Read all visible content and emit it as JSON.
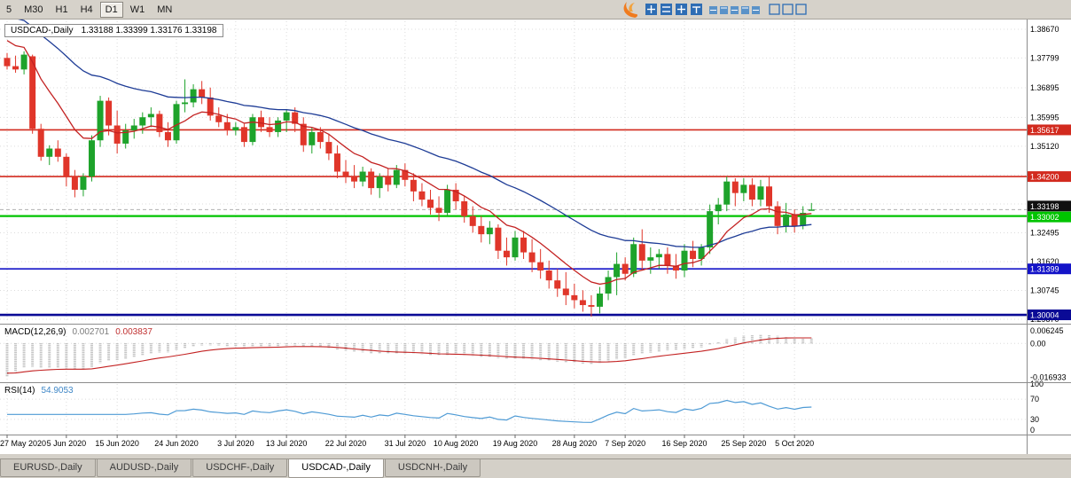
{
  "toolbar": {
    "timeframes": [
      {
        "label": "5",
        "active": false
      },
      {
        "label": "M30",
        "active": false
      },
      {
        "label": "H1",
        "active": false
      },
      {
        "label": "H4",
        "active": false
      },
      {
        "label": "D1",
        "active": true
      },
      {
        "label": "W1",
        "active": false
      },
      {
        "label": "MN",
        "active": false
      }
    ]
  },
  "logo": {
    "primary": "#f07b1e",
    "secondary": "#2e6db4"
  },
  "chart_data": {
    "type": "candlestick",
    "title_symbol": "USDCAD-,Daily",
    "title_ohlc": "1.33188 1.33399 1.33176 1.33198",
    "y_ticks": [
      1.3867,
      1.37799,
      1.36895,
      1.35995,
      1.3512,
      1.34245,
      1.3337,
      1.32495,
      1.3162,
      1.30745,
      1.2987
    ],
    "levels": [
      {
        "price": 1.35617,
        "label": "1.35617",
        "color": "#d22a1e",
        "width": 1.6,
        "badge_offset": 0
      },
      {
        "price": 1.342,
        "label": "1.34200",
        "color": "#d22a1e",
        "width": 1.6,
        "badge_offset": 0
      },
      {
        "price": 1.33002,
        "label": "1.33002",
        "color": "#00c400",
        "width": 2.2,
        "badge_offset": 1
      },
      {
        "price": 1.31399,
        "label": "1.31399",
        "color": "#1414c8",
        "width": 1.6,
        "badge_offset": 0
      },
      {
        "price": 1.30004,
        "label": "1.30004",
        "color": "#0a0a96",
        "width": 2.6,
        "badge_offset": 0
      }
    ],
    "bid": {
      "price": 1.33198,
      "label": "1.33198",
      "color": "#101010",
      "badge_offset": -4
    },
    "x_labels": [
      {
        "index": 0,
        "label": "27 May 2020"
      },
      {
        "index": 7,
        "label": "5 Jun 2020"
      },
      {
        "index": 13,
        "label": "15 Jun 2020"
      },
      {
        "index": 20,
        "label": "24 Jun 2020"
      },
      {
        "index": 27,
        "label": "3 Jul 2020"
      },
      {
        "index": 33,
        "label": "13 Jul 2020"
      },
      {
        "index": 40,
        "label": "22 Jul 2020"
      },
      {
        "index": 47,
        "label": "31 Jul 2020"
      },
      {
        "index": 53,
        "label": "10 Aug 2020"
      },
      {
        "index": 60,
        "label": "19 Aug 2020"
      },
      {
        "index": 67,
        "label": "28 Aug 2020"
      },
      {
        "index": 73,
        "label": "7 Sep 2020"
      },
      {
        "index": 80,
        "label": "16 Sep 2020"
      },
      {
        "index": 87,
        "label": "25 Sep 2020"
      },
      {
        "index": 93,
        "label": "5 Oct 2020"
      }
    ],
    "candles": [
      [
        1.378,
        1.3795,
        1.3745,
        1.3755
      ],
      [
        1.3755,
        1.3787,
        1.3735,
        1.3745
      ],
      [
        1.3745,
        1.38,
        1.373,
        1.379
      ],
      [
        1.3785,
        1.379,
        1.355,
        1.3565
      ],
      [
        1.3565,
        1.358,
        1.3468,
        1.348
      ],
      [
        1.348,
        1.3515,
        1.3455,
        1.3505
      ],
      [
        1.3505,
        1.353,
        1.3465,
        1.348
      ],
      [
        1.348,
        1.349,
        1.339,
        1.342
      ],
      [
        1.342,
        1.344,
        1.3357,
        1.338
      ],
      [
        1.338,
        1.343,
        1.336,
        1.342
      ],
      [
        1.342,
        1.3545,
        1.3405,
        1.353
      ],
      [
        1.353,
        1.3665,
        1.351,
        1.365
      ],
      [
        1.365,
        1.366,
        1.3545,
        1.3575
      ],
      [
        1.3575,
        1.362,
        1.349,
        1.352
      ],
      [
        1.352,
        1.358,
        1.3505,
        1.356
      ],
      [
        1.356,
        1.3595,
        1.3535,
        1.3575
      ],
      [
        1.3575,
        1.3615,
        1.355,
        1.36
      ],
      [
        1.36,
        1.363,
        1.357,
        1.361
      ],
      [
        1.361,
        1.362,
        1.354,
        1.3555
      ],
      [
        1.3555,
        1.3585,
        1.351,
        1.353
      ],
      [
        1.353,
        1.365,
        1.352,
        1.364
      ],
      [
        1.364,
        1.3715,
        1.3615,
        1.3645
      ],
      [
        1.3645,
        1.37,
        1.363,
        1.3685
      ],
      [
        1.3685,
        1.371,
        1.364,
        1.366
      ],
      [
        1.366,
        1.369,
        1.359,
        1.3605
      ],
      [
        1.3605,
        1.363,
        1.357,
        1.3585
      ],
      [
        1.3585,
        1.361,
        1.3545,
        1.356
      ],
      [
        1.356,
        1.3585,
        1.3545,
        1.357
      ],
      [
        1.357,
        1.358,
        1.351,
        1.3525
      ],
      [
        1.3525,
        1.361,
        1.3515,
        1.36
      ],
      [
        1.36,
        1.362,
        1.3555,
        1.357
      ],
      [
        1.357,
        1.36,
        1.354,
        1.3555
      ],
      [
        1.3555,
        1.36,
        1.354,
        1.359
      ],
      [
        1.359,
        1.3625,
        1.3555,
        1.3615
      ],
      [
        1.3615,
        1.363,
        1.3555,
        1.358
      ],
      [
        1.358,
        1.36,
        1.3495,
        1.3515
      ],
      [
        1.3515,
        1.357,
        1.349,
        1.3555
      ],
      [
        1.3555,
        1.357,
        1.3505,
        1.3525
      ],
      [
        1.3525,
        1.355,
        1.347,
        1.349
      ],
      [
        1.349,
        1.3515,
        1.3415,
        1.3435
      ],
      [
        1.3435,
        1.347,
        1.34,
        1.342
      ],
      [
        1.342,
        1.3455,
        1.3385,
        1.3405
      ],
      [
        1.3405,
        1.345,
        1.339,
        1.3435
      ],
      [
        1.3435,
        1.3445,
        1.3365,
        1.3385
      ],
      [
        1.3385,
        1.343,
        1.3355,
        1.342
      ],
      [
        1.342,
        1.3445,
        1.3375,
        1.3395
      ],
      [
        1.3395,
        1.3455,
        1.3385,
        1.344
      ],
      [
        1.344,
        1.346,
        1.339,
        1.341
      ],
      [
        1.341,
        1.343,
        1.3345,
        1.3375
      ],
      [
        1.3375,
        1.34,
        1.333,
        1.335
      ],
      [
        1.335,
        1.338,
        1.3305,
        1.3325
      ],
      [
        1.3325,
        1.336,
        1.3285,
        1.331
      ],
      [
        1.331,
        1.3395,
        1.33,
        1.338
      ],
      [
        1.338,
        1.34,
        1.332,
        1.3345
      ],
      [
        1.3345,
        1.336,
        1.328,
        1.33
      ],
      [
        1.33,
        1.333,
        1.325,
        1.327
      ],
      [
        1.327,
        1.33,
        1.322,
        1.3245
      ],
      [
        1.3245,
        1.3285,
        1.3215,
        1.3265
      ],
      [
        1.3265,
        1.3275,
        1.317,
        1.3195
      ],
      [
        1.3195,
        1.3235,
        1.315,
        1.3175
      ],
      [
        1.3175,
        1.3255,
        1.3165,
        1.3235
      ],
      [
        1.3235,
        1.3255,
        1.317,
        1.319
      ],
      [
        1.319,
        1.323,
        1.313,
        1.316
      ],
      [
        1.316,
        1.32,
        1.311,
        1.3135
      ],
      [
        1.3135,
        1.3165,
        1.308,
        1.3105
      ],
      [
        1.3105,
        1.314,
        1.3055,
        1.308
      ],
      [
        1.308,
        1.313,
        1.303,
        1.306
      ],
      [
        1.306,
        1.3095,
        1.302,
        1.3045
      ],
      [
        1.3045,
        1.3075,
        1.301,
        1.303
      ],
      [
        1.303,
        1.306,
        1.2995,
        1.3025
      ],
      [
        1.3025,
        1.3085,
        1.3005,
        1.3065
      ],
      [
        1.3065,
        1.3135,
        1.3045,
        1.3115
      ],
      [
        1.3115,
        1.319,
        1.306,
        1.3155
      ],
      [
        1.3155,
        1.3175,
        1.3105,
        1.3125
      ],
      [
        1.3125,
        1.3235,
        1.3115,
        1.3215
      ],
      [
        1.3215,
        1.326,
        1.3135,
        1.3165
      ],
      [
        1.3165,
        1.3205,
        1.3125,
        1.3175
      ],
      [
        1.3175,
        1.32,
        1.314,
        1.3185
      ],
      [
        1.3185,
        1.3205,
        1.3125,
        1.315
      ],
      [
        1.315,
        1.3185,
        1.311,
        1.3135
      ],
      [
        1.3135,
        1.3215,
        1.3115,
        1.3195
      ],
      [
        1.3195,
        1.3225,
        1.3145,
        1.317
      ],
      [
        1.317,
        1.3215,
        1.315,
        1.3205
      ],
      [
        1.3205,
        1.3335,
        1.3185,
        1.3315
      ],
      [
        1.3315,
        1.3355,
        1.3275,
        1.3335
      ],
      [
        1.3335,
        1.342,
        1.3315,
        1.3405
      ],
      [
        1.3405,
        1.3415,
        1.333,
        1.337
      ],
      [
        1.337,
        1.3415,
        1.3345,
        1.3395
      ],
      [
        1.3395,
        1.3415,
        1.333,
        1.335
      ],
      [
        1.335,
        1.341,
        1.333,
        1.339
      ],
      [
        1.339,
        1.342,
        1.331,
        1.333
      ],
      [
        1.333,
        1.3345,
        1.3245,
        1.327
      ],
      [
        1.327,
        1.334,
        1.325,
        1.3305
      ],
      [
        1.3305,
        1.332,
        1.325,
        1.327
      ],
      [
        1.327,
        1.333,
        1.326,
        1.331
      ],
      [
        1.33188,
        1.33399,
        1.33176,
        1.33198
      ]
    ],
    "macd": {
      "label": "MACD(12,26,9)",
      "value_main": "0.002701",
      "value_signal": "0.003837",
      "params": [
        12,
        26,
        9
      ],
      "axis": [
        {
          "v": 0.006245,
          "label": "0.006245"
        },
        {
          "v": 0.0,
          "label": "0.00"
        },
        {
          "v": -0.016933,
          "label": "-0.016933"
        }
      ]
    },
    "rsi": {
      "label": "RSI(14)",
      "value": "54.9053",
      "period": 14,
      "levels": [
        70,
        30
      ],
      "axis": [
        {
          "v": 100,
          "label": "100"
        },
        {
          "v": 70,
          "label": "70"
        },
        {
          "v": 30,
          "label": "30"
        },
        {
          "v": 0,
          "label": "0"
        }
      ]
    },
    "colors": {
      "up": "#1ea32b",
      "down": "#e0362a",
      "ma_fast": "#c32222",
      "ma_slow": "#1e3c96",
      "macd_hist": "#b4b4b4",
      "macd_signal": "#c32222",
      "rsi_line": "#4f9bd5",
      "grid": "#dcdcdc"
    }
  },
  "tabs": [
    {
      "label": "EURUSD-,Daily",
      "active": false
    },
    {
      "label": "AUDUSD-,Daily",
      "active": false
    },
    {
      "label": "USDCHF-,Daily",
      "active": false
    },
    {
      "label": "USDCAD-,Daily",
      "active": true
    },
    {
      "label": "USDCNH-,Daily",
      "active": false
    }
  ]
}
